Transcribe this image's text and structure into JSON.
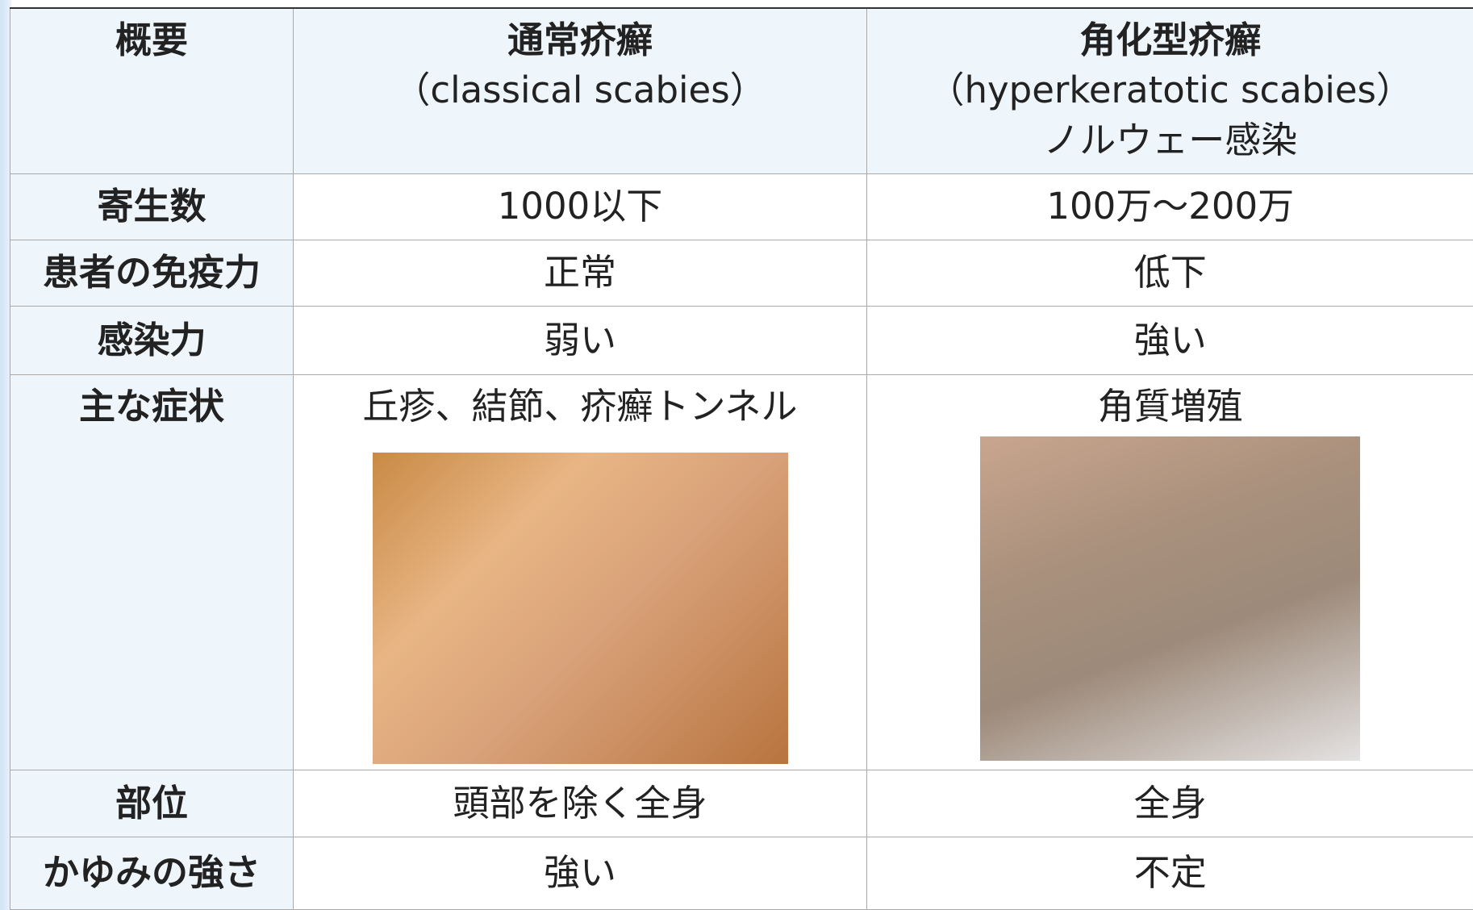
{
  "table": {
    "header": {
      "label": "概要",
      "classical": [
        "通常疥癬",
        "（classical scabies）"
      ],
      "hyperkeratotic": [
        "角化型疥癬",
        "（hyperkeratotic scabies）",
        "ノルウェー感染"
      ]
    },
    "rows": [
      [
        "寄生数",
        "1000以下",
        "100万～200万"
      ],
      [
        "患者の免疫力",
        "正常",
        "低下"
      ],
      [
        "感染力",
        "弱い",
        "強い"
      ],
      [
        "主な症状",
        "丘疹、結節、疥癬トンネル",
        "角質増殖"
      ],
      [
        "部位",
        "頭部を除く全身",
        "全身"
      ],
      [
        "かゆみの強さ",
        "強い",
        "不定"
      ]
    ]
  }
}
